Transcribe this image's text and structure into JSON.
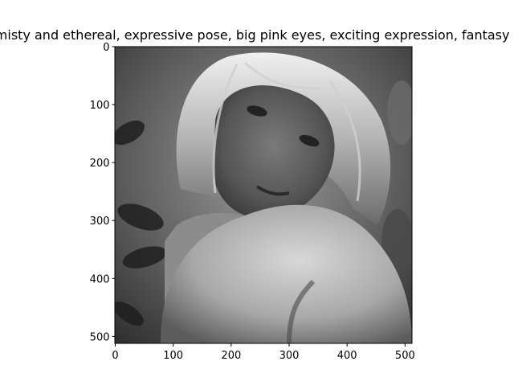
{
  "chart_data": {
    "type": "image",
    "title": "misty and ethereal, expressive pose, big pink eyes, exciting expression, fantasy art",
    "xlabel": "",
    "ylabel": "",
    "xlim": [
      0,
      512
    ],
    "ylim": [
      512,
      0
    ],
    "x_ticks": [
      0,
      100,
      200,
      300,
      400,
      500
    ],
    "y_ticks": [
      0,
      100,
      200,
      300,
      400,
      500
    ],
    "grid": false,
    "colormap": "grayscale",
    "image_description": "black-and-white portrait photo of a young woman with light hair, head tilted, bare shoulder in foreground, leafy background"
  },
  "colors": {
    "axis": "#000000",
    "background": "#ffffff"
  }
}
